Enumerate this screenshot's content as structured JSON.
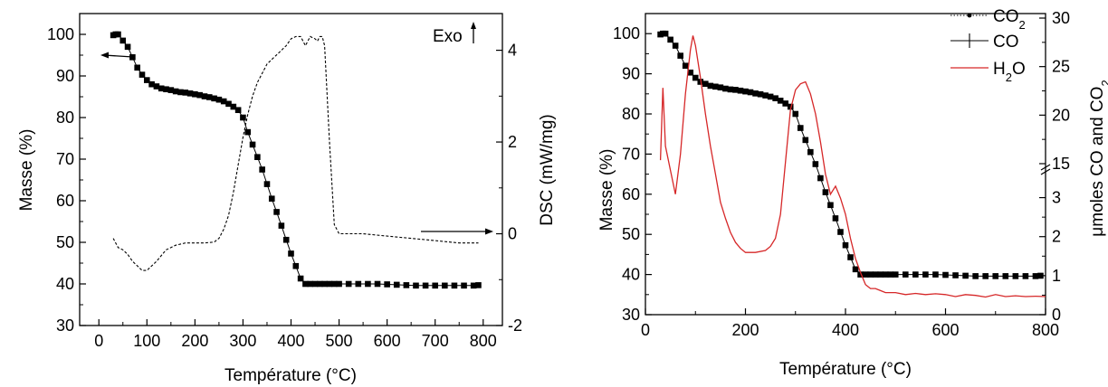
{
  "chart_data": [
    {
      "type": "line",
      "xlabel": "Température (°C)",
      "ylabel_left": "Masse (%)",
      "ylabel_right": "DSC (mW/mg)",
      "annotation_exo": "Exo",
      "x_ticks": [
        "0",
        "100",
        "200",
        "300",
        "400",
        "500",
        "600",
        "700",
        "800"
      ],
      "y_left_ticks": [
        "30",
        "40",
        "50",
        "60",
        "70",
        "80",
        "90",
        "100"
      ],
      "y_right_ticks": [
        "-2",
        "0",
        "2",
        "4"
      ],
      "xlim": [
        -40,
        840
      ],
      "ylim_left": [
        30,
        105
      ],
      "ylim_right": [
        -2,
        4.8
      ],
      "grid": false,
      "series": [
        {
          "axis": "left",
          "style": "square-markers",
          "x": [
            30,
            35,
            40,
            50,
            60,
            70,
            80,
            90,
            100,
            110,
            120,
            130,
            140,
            150,
            160,
            170,
            180,
            190,
            200,
            210,
            220,
            230,
            240,
            250,
            260,
            270,
            280,
            290,
            300,
            310,
            320,
            330,
            340,
            350,
            360,
            370,
            380,
            390,
            400,
            410,
            420,
            430,
            440,
            450,
            460,
            470,
            480,
            490,
            500,
            520,
            540,
            560,
            580,
            600,
            620,
            640,
            660,
            680,
            700,
            720,
            740,
            760,
            780,
            790
          ],
          "y": [
            99.8,
            100,
            100,
            98.5,
            97,
            94.5,
            92,
            90.3,
            89,
            88,
            87.5,
            87,
            86.8,
            86.6,
            86.3,
            86.1,
            86,
            85.8,
            85.6,
            85.4,
            85.1,
            84.9,
            84.6,
            84.3,
            83.9,
            83.3,
            82.6,
            81.8,
            80,
            76.5,
            73.5,
            70.5,
            67.5,
            64,
            60.5,
            57.3,
            54,
            50.6,
            47.3,
            44.3,
            41.3,
            40,
            40,
            40,
            40,
            40,
            40,
            40,
            40,
            40,
            40,
            40,
            40,
            39.9,
            39.8,
            39.7,
            39.6,
            39.6,
            39.6,
            39.6,
            39.6,
            39.6,
            39.6,
            39.7
          ]
        },
        {
          "axis": "right",
          "style": "dashed",
          "x": [
            30,
            40,
            50,
            60,
            70,
            80,
            90,
            100,
            120,
            140,
            160,
            180,
            200,
            220,
            240,
            250,
            260,
            270,
            280,
            290,
            300,
            310,
            320,
            330,
            340,
            350,
            360,
            370,
            380,
            390,
            400,
            410,
            420,
            430,
            440,
            450,
            455,
            460,
            465,
            470,
            480,
            490,
            500,
            550,
            600,
            650,
            700,
            750,
            790
          ],
          "y": [
            -0.1,
            -0.3,
            -0.35,
            -0.45,
            -0.6,
            -0.7,
            -0.8,
            -0.8,
            -0.6,
            -0.35,
            -0.25,
            -0.2,
            -0.2,
            -0.2,
            -0.18,
            -0.1,
            0.1,
            0.4,
            0.9,
            1.5,
            2.1,
            2.6,
            3,
            3.3,
            3.5,
            3.7,
            3.8,
            3.9,
            4,
            4.1,
            4.25,
            4.3,
            4.3,
            4.1,
            4.3,
            4.25,
            4.2,
            4.3,
            4.3,
            4.1,
            2,
            0.2,
            0,
            0,
            -0.05,
            -0.1,
            -0.15,
            -0.2,
            -0.2
          ]
        }
      ]
    },
    {
      "type": "line",
      "xlabel": "Température (°C)",
      "ylabel_left": "Masse (%)",
      "ylabel_right": "μmoles CO and CO2",
      "x_ticks": [
        "0",
        "200",
        "400",
        "600",
        "800"
      ],
      "y_left_ticks": [
        "30",
        "40",
        "50",
        "60",
        "70",
        "80",
        "90",
        "100"
      ],
      "y_right_upper_ticks": [
        "15",
        "20",
        "25",
        "30"
      ],
      "y_right_lower_ticks": [
        "0",
        "1",
        "2",
        "3"
      ],
      "xlim": [
        0,
        800
      ],
      "ylim_left": [
        30,
        105
      ],
      "right_axis_break": true,
      "legend_position": "top-right",
      "grid": false,
      "legend": [
        {
          "label": "CO",
          "sub": "2",
          "style": "dotted-dot"
        },
        {
          "label": "CO",
          "sub": "",
          "style": "line-plus"
        },
        {
          "label": "H",
          "sub": "2",
          "suffix": "O",
          "style": "red-line"
        }
      ],
      "series": [
        {
          "axis": "left",
          "style": "square-markers",
          "x": [
            30,
            35,
            40,
            50,
            60,
            70,
            80,
            90,
            100,
            110,
            120,
            130,
            140,
            150,
            160,
            170,
            180,
            190,
            200,
            210,
            220,
            230,
            240,
            250,
            260,
            270,
            280,
            290,
            300,
            310,
            320,
            330,
            340,
            350,
            360,
            370,
            380,
            390,
            400,
            410,
            420,
            430,
            440,
            450,
            460,
            470,
            480,
            490,
            500,
            520,
            540,
            560,
            580,
            600,
            620,
            640,
            660,
            680,
            700,
            720,
            740,
            760,
            780,
            790
          ],
          "y": [
            99.8,
            100,
            100,
            98.5,
            97,
            94.5,
            92,
            90.3,
            89,
            88,
            87.5,
            87,
            86.8,
            86.6,
            86.3,
            86.1,
            86,
            85.8,
            85.6,
            85.4,
            85.1,
            84.9,
            84.6,
            84.3,
            83.9,
            83.3,
            82.6,
            81.8,
            80,
            76.5,
            73.5,
            70.5,
            67.5,
            64,
            60.5,
            57.3,
            54,
            50.6,
            47.3,
            44.3,
            41.3,
            40,
            40,
            40,
            40,
            40,
            40,
            40,
            40,
            40,
            40,
            40,
            40,
            39.9,
            39.8,
            39.7,
            39.6,
            39.6,
            39.6,
            39.6,
            39.6,
            39.6,
            39.6,
            39.7
          ]
        },
        {
          "axis": "left",
          "style": "red-line",
          "color": "#d62728",
          "x": [
            30,
            35,
            40,
            50,
            60,
            70,
            80,
            90,
            95,
            100,
            110,
            120,
            130,
            140,
            150,
            160,
            170,
            180,
            190,
            200,
            220,
            240,
            250,
            260,
            270,
            280,
            290,
            300,
            310,
            320,
            330,
            340,
            350,
            360,
            370,
            380,
            390,
            400,
            410,
            420,
            430,
            440,
            450,
            460,
            470,
            480,
            490,
            500,
            520,
            540,
            560,
            580,
            600,
            620,
            640,
            660,
            680,
            700,
            720,
            740,
            760,
            780,
            800
          ],
          "y": [
            68.5,
            86.5,
            72,
            66,
            60,
            70,
            85,
            96,
            99.5,
            97,
            89,
            80,
            72,
            65,
            58,
            54,
            50.5,
            48,
            46.5,
            45.5,
            45.5,
            46,
            47,
            49,
            55,
            68,
            81,
            86,
            87.5,
            88,
            85,
            80,
            73,
            65,
            60,
            62,
            59,
            55,
            49,
            44,
            40.5,
            37.5,
            36.5,
            36.5,
            36,
            35.5,
            35.5,
            35.5,
            35,
            35.3,
            35,
            35.2,
            35,
            34.5,
            35,
            34.8,
            34.4,
            35,
            34.5,
            34.7,
            34.5,
            34.6,
            34.5
          ]
        }
      ]
    }
  ]
}
